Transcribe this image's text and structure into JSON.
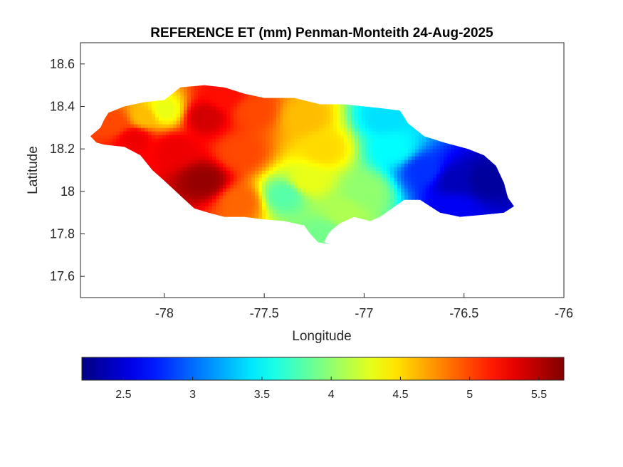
{
  "chart_data": {
    "type": "heatmap",
    "title": "REFERENCE ET (mm) Penman-Monteith 24-Aug-2025",
    "xlabel": "Longitude",
    "ylabel": "Latitude",
    "xlim": [
      -78.42,
      -76.0
    ],
    "ylim": [
      17.5,
      18.7
    ],
    "xticks": [
      -78,
      -77.5,
      -77,
      -76.5,
      -76
    ],
    "yticks": [
      17.6,
      17.8,
      18,
      18.2,
      18.4,
      18.6
    ],
    "grid": false,
    "colormap": "jet",
    "colorbar": {
      "location": "south",
      "range": [
        2.2,
        5.68
      ],
      "ticks": [
        2.5,
        3,
        3.5,
        4,
        4.5,
        5,
        5.5
      ]
    },
    "region_outline": [
      [
        -78.37,
        18.26
      ],
      [
        -78.32,
        18.3
      ],
      [
        -78.3,
        18.34
      ],
      [
        -78.28,
        18.37
      ],
      [
        -78.2,
        18.4
      ],
      [
        -78.1,
        18.42
      ],
      [
        -78.0,
        18.43
      ],
      [
        -77.96,
        18.46
      ],
      [
        -77.92,
        18.49
      ],
      [
        -77.8,
        18.5
      ],
      [
        -77.7,
        18.49
      ],
      [
        -77.6,
        18.46
      ],
      [
        -77.5,
        18.44
      ],
      [
        -77.35,
        18.44
      ],
      [
        -77.22,
        18.41
      ],
      [
        -77.1,
        18.41
      ],
      [
        -77.0,
        18.4
      ],
      [
        -76.9,
        18.39
      ],
      [
        -76.82,
        18.38
      ],
      [
        -76.78,
        18.32
      ],
      [
        -76.7,
        18.26
      ],
      [
        -76.6,
        18.23
      ],
      [
        -76.48,
        18.2
      ],
      [
        -76.4,
        18.17
      ],
      [
        -76.34,
        18.12
      ],
      [
        -76.3,
        18.04
      ],
      [
        -76.28,
        17.97
      ],
      [
        -76.25,
        17.93
      ],
      [
        -76.3,
        17.9
      ],
      [
        -76.4,
        17.89
      ],
      [
        -76.52,
        17.88
      ],
      [
        -76.62,
        17.9
      ],
      [
        -76.72,
        17.96
      ],
      [
        -76.8,
        17.96
      ],
      [
        -76.86,
        17.92
      ],
      [
        -76.92,
        17.88
      ],
      [
        -76.97,
        17.86
      ],
      [
        -77.05,
        17.88
      ],
      [
        -77.12,
        17.85
      ],
      [
        -77.16,
        17.82
      ],
      [
        -77.18,
        17.8
      ],
      [
        -77.2,
        17.76
      ],
      [
        -77.17,
        17.75
      ],
      [
        -77.23,
        17.76
      ],
      [
        -77.27,
        17.8
      ],
      [
        -77.3,
        17.84
      ],
      [
        -77.4,
        17.86
      ],
      [
        -77.52,
        17.87
      ],
      [
        -77.6,
        17.88
      ],
      [
        -77.7,
        17.88
      ],
      [
        -77.78,
        17.9
      ],
      [
        -77.85,
        17.92
      ],
      [
        -77.92,
        17.98
      ],
      [
        -78.0,
        18.05
      ],
      [
        -78.06,
        18.1
      ],
      [
        -78.12,
        18.17
      ],
      [
        -78.2,
        18.21
      ],
      [
        -78.3,
        18.22
      ],
      [
        -78.34,
        18.23
      ]
    ],
    "field_sites": [
      {
        "lon": -77.8,
        "lat": 18.05,
        "et": 5.6
      },
      {
        "lon": -77.8,
        "lat": 18.35,
        "et": 5.4
      },
      {
        "lon": -77.95,
        "lat": 18.2,
        "et": 5.3
      },
      {
        "lon": -77.62,
        "lat": 18.18,
        "et": 5.0
      },
      {
        "lon": -77.62,
        "lat": 17.95,
        "et": 4.9
      },
      {
        "lon": -77.55,
        "lat": 18.38,
        "et": 5.0
      },
      {
        "lon": -77.3,
        "lat": 18.35,
        "et": 4.6
      },
      {
        "lon": -77.2,
        "lat": 18.2,
        "et": 4.5
      },
      {
        "lon": -77.28,
        "lat": 18.05,
        "et": 4.3
      },
      {
        "lon": -77.4,
        "lat": 17.98,
        "et": 3.8
      },
      {
        "lon": -77.1,
        "lat": 17.9,
        "et": 4.1
      },
      {
        "lon": -77.0,
        "lat": 18.0,
        "et": 4.0
      },
      {
        "lon": -76.85,
        "lat": 18.2,
        "et": 3.5
      },
      {
        "lon": -76.9,
        "lat": 18.35,
        "et": 3.4
      },
      {
        "lon": -76.7,
        "lat": 18.1,
        "et": 2.8
      },
      {
        "lon": -76.55,
        "lat": 18.05,
        "et": 2.4
      },
      {
        "lon": -76.4,
        "lat": 18.05,
        "et": 2.3
      },
      {
        "lon": -76.55,
        "lat": 17.92,
        "et": 2.6
      },
      {
        "lon": -77.2,
        "lat": 17.8,
        "et": 3.9
      },
      {
        "lon": -78.25,
        "lat": 18.32,
        "et": 5.0
      },
      {
        "lon": -78.1,
        "lat": 18.35,
        "et": 4.6
      },
      {
        "lon": -78.15,
        "lat": 18.25,
        "et": 5.3
      },
      {
        "lon": -77.7,
        "lat": 18.45,
        "et": 5.2
      },
      {
        "lon": -78.0,
        "lat": 18.38,
        "et": 4.3
      }
    ]
  }
}
